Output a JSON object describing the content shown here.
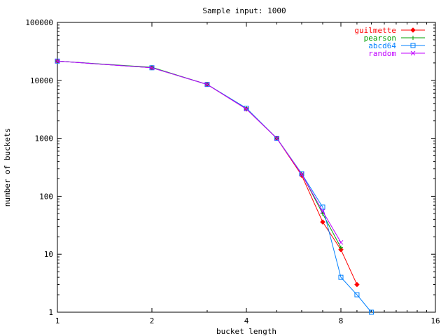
{
  "chart_data": {
    "type": "line",
    "title": "Sample input: 1000",
    "xlabel": "bucket length",
    "ylabel": "number of buckets",
    "x_scale": "log2",
    "y_scale": "log10",
    "xlim": [
      1,
      16
    ],
    "ylim": [
      1,
      100000
    ],
    "x_ticks": [
      "1",
      "2",
      "4",
      "8",
      "16"
    ],
    "y_ticks": [
      "1",
      "10",
      "100",
      "1000",
      "10000",
      "100000"
    ],
    "grid": false,
    "legend_position": "top-right",
    "series": [
      {
        "name": "guilmette",
        "color": "#ff0000",
        "marker": "diamond",
        "points": [
          [
            1,
            21500
          ],
          [
            2,
            16500
          ],
          [
            3,
            8500
          ],
          [
            4,
            3200
          ],
          [
            5,
            1000
          ],
          [
            6,
            230
          ],
          [
            7,
            36
          ],
          [
            8,
            12
          ],
          [
            9,
            3
          ]
        ]
      },
      {
        "name": "pearson",
        "color": "#00a000",
        "marker": "plus",
        "points": [
          [
            1,
            21500
          ],
          [
            2,
            16800
          ],
          [
            3,
            8500
          ],
          [
            4,
            3300
          ],
          [
            5,
            1000
          ],
          [
            6,
            245
          ],
          [
            7,
            50
          ],
          [
            8,
            13
          ]
        ]
      },
      {
        "name": "abcd64",
        "color": "#0080ff",
        "marker": "square",
        "points": [
          [
            1,
            21500
          ],
          [
            2,
            16500
          ],
          [
            3,
            8500
          ],
          [
            4,
            3300
          ],
          [
            5,
            1000
          ],
          [
            6,
            245
          ],
          [
            7,
            65
          ],
          [
            8,
            4
          ],
          [
            9,
            2
          ],
          [
            10,
            1
          ]
        ]
      },
      {
        "name": "random",
        "color": "#c000ff",
        "marker": "x",
        "points": [
          [
            1,
            21500
          ],
          [
            2,
            16500
          ],
          [
            3,
            8500
          ],
          [
            4,
            3200
          ],
          [
            5,
            1000
          ],
          [
            6,
            240
          ],
          [
            7,
            55
          ],
          [
            8,
            16
          ]
        ]
      }
    ]
  }
}
